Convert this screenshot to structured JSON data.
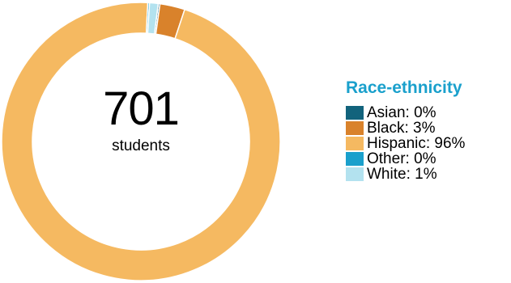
{
  "chart_data": {
    "type": "pie",
    "style": "donut",
    "total_count": "701",
    "total_label": "students",
    "legend_title": "Race-ethnicity",
    "legend_placement": "right",
    "slices": [
      {
        "label": "Asian: 0%",
        "name": "Asian",
        "value": 0.2,
        "color": "#12637c"
      },
      {
        "label": "Black: 3%",
        "name": "Black",
        "value": 2.9,
        "color": "#d9822b"
      },
      {
        "label": "Hispanic: 96%",
        "name": "Hispanic",
        "value": 95.7,
        "color": "#f5b961"
      },
      {
        "label": "Other: 0%",
        "name": "Other",
        "value": 0.2,
        "color": "#1aa0cc"
      },
      {
        "label": "White: 1%",
        "name": "White",
        "value": 1.0,
        "color": "#b3e2ef"
      }
    ],
    "colors": {
      "title": "#1aa0cc"
    }
  }
}
